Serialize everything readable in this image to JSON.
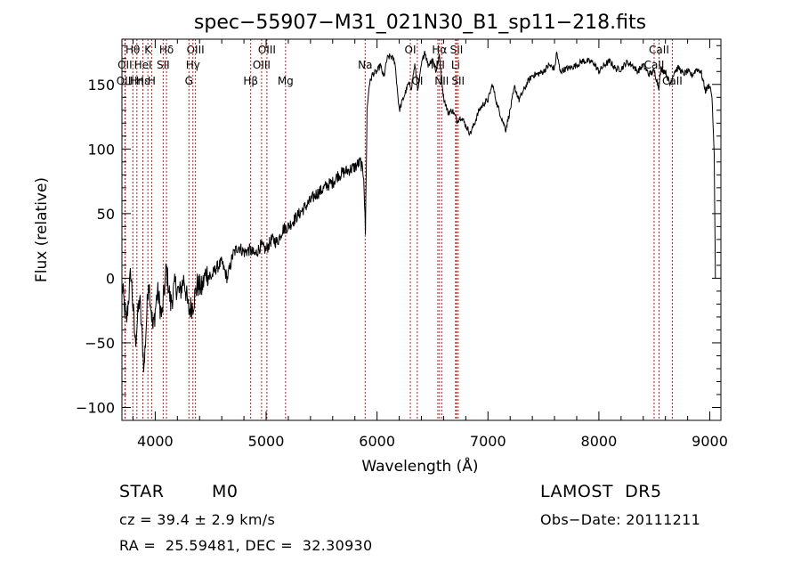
{
  "chart_data": {
    "type": "line",
    "title": "spec−55907−M31_021N30_B1_sp11−218.fits",
    "xlabel": "Wavelength (Å)",
    "ylabel": "Flux (relative)",
    "xlim": [
      3700,
      9100
    ],
    "ylim": [
      -110,
      185
    ],
    "xticks": [
      4000,
      5000,
      6000,
      7000,
      8000,
      9000
    ],
    "xtick_labels": [
      "4000",
      "5000",
      "6000",
      "7000",
      "8000",
      "9000"
    ],
    "yticks": [
      -100,
      -50,
      0,
      50,
      100,
      150
    ],
    "ytick_labels": [
      "−100",
      "−50",
      "0",
      "50",
      "100",
      "150"
    ],
    "grid": false,
    "legend": "none",
    "line_color": "#000000",
    "marker_color": "#b22222",
    "series": [
      {
        "x": [
          3700,
          3740,
          3780,
          3820,
          3860,
          3900,
          3940,
          3980,
          4020,
          4060,
          4100,
          4140,
          4180,
          4220,
          4260,
          4300,
          4340,
          4380,
          4420,
          4460,
          4500,
          4550,
          4600,
          4650,
          4700,
          4750,
          4800,
          4850,
          4900,
          4950,
          5000,
          5050,
          5100,
          5150,
          5200,
          5250,
          5300,
          5350,
          5400,
          5450,
          5500,
          5550,
          5600,
          5650,
          5700,
          5750,
          5800,
          5850,
          5880,
          5895,
          5910,
          5930,
          5960,
          6000,
          6030,
          6060,
          6090,
          6120,
          6160,
          6200,
          6240,
          6280,
          6310,
          6340,
          6370,
          6400,
          6430,
          6460,
          6500,
          6530,
          6563,
          6600,
          6640,
          6680,
          6720,
          6760,
          6800,
          6840,
          6880,
          6920,
          6960,
          7000,
          7040,
          7080,
          7120,
          7160,
          7200,
          7240,
          7280,
          7320,
          7360,
          7400,
          7450,
          7500,
          7550,
          7600,
          7620,
          7650,
          7700,
          7750,
          7800,
          7850,
          7900,
          7950,
          8000,
          8050,
          8100,
          8150,
          8200,
          8250,
          8300,
          8350,
          8400,
          8450,
          8500,
          8540,
          8560,
          8600,
          8640,
          8680,
          8720,
          8760,
          8800,
          8840,
          8880,
          8920,
          8960,
          9000,
          9020,
          9040,
          9050
        ],
        "y": [
          -5,
          -35,
          5,
          -50,
          -15,
          -70,
          0,
          -40,
          -10,
          -30,
          8,
          -20,
          -5,
          -12,
          0,
          -25,
          -20,
          -5,
          -8,
          5,
          0,
          8,
          12,
          0,
          18,
          25,
          20,
          22,
          18,
          25,
          22,
          30,
          28,
          38,
          40,
          45,
          50,
          55,
          60,
          65,
          68,
          72,
          74,
          80,
          82,
          84,
          86,
          90,
          80,
          35,
          130,
          150,
          158,
          160,
          165,
          155,
          170,
          172,
          168,
          130,
          140,
          150,
          148,
          165,
          145,
          165,
          176,
          165,
          170,
          160,
          172,
          140,
          128,
          130,
          122,
          125,
          118,
          112,
          120,
          130,
          135,
          138,
          150,
          135,
          125,
          115,
          130,
          148,
          138,
          145,
          152,
          157,
          158,
          160,
          165,
          162,
          175,
          160,
          162,
          163,
          165,
          168,
          168,
          167,
          160,
          165,
          168,
          162,
          162,
          167,
          165,
          160,
          165,
          158,
          160,
          148,
          162,
          160,
          150,
          160,
          163,
          158,
          160,
          157,
          162,
          160,
          145,
          150,
          140,
          95,
          0
        ]
      }
    ],
    "line_markers": [
      {
        "label": "Hθ",
        "x": 3798,
        "row": 1
      },
      {
        "label": "OII",
        "x": 3727,
        "row": 2
      },
      {
        "label": "OIII",
        "x": 3730,
        "row": 3
      },
      {
        "label": "Hη",
        "x": 3835,
        "row": 3
      },
      {
        "label": "K",
        "x": 3934,
        "row": 1
      },
      {
        "label": "HeI",
        "x": 3889,
        "row": 2
      },
      {
        "label": "Hε",
        "x": 3889,
        "row": 3
      },
      {
        "label": "H",
        "x": 3968,
        "row": 3
      },
      {
        "label": "Hδ",
        "x": 4102,
        "row": 1
      },
      {
        "label": "SII",
        "x": 4072,
        "row": 2
      },
      {
        "label": "OIII",
        "x": 4363,
        "row": 1
      },
      {
        "label": "Hγ",
        "x": 4340,
        "row": 2
      },
      {
        "label": "G",
        "x": 4304,
        "row": 3
      },
      {
        "label": "Hβ",
        "x": 4861,
        "row": 3
      },
      {
        "label": "OIII",
        "x": 5007,
        "row": 1
      },
      {
        "label": "OIII",
        "x": 4959,
        "row": 2
      },
      {
        "label": "Mg",
        "x": 5175,
        "row": 3
      },
      {
        "label": "Na",
        "x": 5893,
        "row": 2
      },
      {
        "label": "OI",
        "x": 6300,
        "row": 1
      },
      {
        "label": "OI",
        "x": 6363,
        "row": 3
      },
      {
        "label": "Hα",
        "x": 6563,
        "row": 1
      },
      {
        "label": "NII",
        "x": 6548,
        "row": 2
      },
      {
        "label": "NII",
        "x": 6583,
        "row": 3
      },
      {
        "label": "SII",
        "x": 6717,
        "row": 1
      },
      {
        "label": "Li",
        "x": 6708,
        "row": 2
      },
      {
        "label": "SII",
        "x": 6731,
        "row": 3
      },
      {
        "label": "CaII",
        "x": 8542,
        "row": 1
      },
      {
        "label": "CaII",
        "x": 8498,
        "row": 2
      },
      {
        "label": "CaII",
        "x": 8662,
        "row": 3
      }
    ]
  },
  "info": {
    "class": "STAR",
    "subclass": "M0",
    "survey": "LAMOST  DR5",
    "cz": "cz = 39.4 ± 2.9 km/s",
    "obs_date": "Obs−Date: 20111211",
    "radec": "RA =  25.59481, DEC =  32.30930"
  }
}
